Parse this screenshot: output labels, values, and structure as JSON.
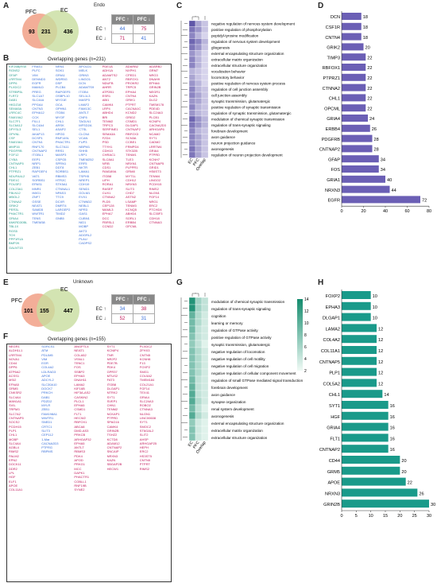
{
  "panel_letters": [
    "A",
    "B",
    "C",
    "D",
    "E",
    "F",
    "G",
    "H"
  ],
  "panel_a": {
    "figure_title": "Endo",
    "venn": {
      "set1": "PFC",
      "set2": "EC",
      "only1": "93",
      "both": "231",
      "only2": "436"
    },
    "table": {
      "col1": "PFC ↑",
      "col2": "PFC ↓",
      "row1": "EC ↑",
      "row2": "EC ↓",
      "c11": "44",
      "c12": "75",
      "c21": "71",
      "c22": "41"
    }
  },
  "panel_b": {
    "title": "Overlapping genes (n=231)",
    "columns": [
      {
        "cls": "g1",
        "genes": [
          "KIF26B|RSE",
          "RGNS2",
          "GFAP",
          "LRRTM4",
          "DPP6",
          "PLXDC2",
          "STRBP5L",
          "FLRT2",
          "DAB1",
          "HKDZ18",
          "SEMA5A",
          "LRRC4C",
          "FAM19A2",
          "SLC7F1",
          "SLC6A12",
          "DPYSL3",
          "OPVNL",
          "CSF",
          "FAM19A1",
          "MMP16",
          "PDGFRB",
          "FGF12",
          "CYBA",
          "CNTNAP5",
          "CHL1",
          "PTPRZ1",
          "NDUFA4L2",
          "PDE1C",
          "POU3F2",
          "COL23A1",
          "FBLN12",
          "MBOL2",
          "CTNNA2",
          "GRIK2",
          "PER3L",
          "PHACTR1",
          "GRIA4",
          "ANKRD30BL",
          "TBL1X",
          "RGS5",
          "TOX",
          "PPP1R1A",
          "BMP2K",
          "GALNT15"
        ]
      },
      {
        "cls": "g2",
        "genes": [
          "FRAS1",
          "PLFC",
          "VIM",
          "DENND3",
          "EGFR",
          "MAMLD",
          "PREG",
          "SLC1A7",
          "SLC44A",
          "PPGA4",
          "CNTN3",
          "EPHA12",
          "CCK",
          "FILL1",
          "SLC4A4",
          "SEL1",
          "AKAP13",
          "DCSP1",
          "CNTN1",
          "RNF170",
          "CNTNAP2",
          "ITGBL1",
          "EEP1",
          "NRP1",
          "ZEB1",
          "RAPGEF4",
          "VAT1",
          "SORBS1",
          "EPAS1",
          "MNR1",
          "IMIG1",
          "ZNF7",
          "GSSE",
          "NEAT1",
          "SAMD5",
          "WWTR1",
          "TENS",
          "TMEM38"
        ]
      },
      {
        "cls": "g2",
        "genes": [
          "NRN1",
          "SGK1",
          "GRIA1",
          "WDR5G",
          "DSP",
          "PLCB4",
          "RAPGEF5",
          "OSBPL10",
          "MYO1E",
          "OCA",
          "OPHN1",
          "ITGB4",
          "MYOF",
          "CHL1",
          "ARSK",
          "ASAP2",
          "HPGD",
          "RNF149L",
          "PHACTR1",
          "SLC7A11",
          "RRS1",
          "MASP3",
          "CSPG5",
          "SPRN1",
          "DDT8",
          "SORBS1",
          "RBMS3",
          "HTR2C",
          "STK5A1",
          "CTNNAL1",
          "NPAS3",
          "TTC9",
          "DCXR",
          "DMRT4",
          "LARGEP2",
          "TIMD2",
          "GNB5"
        ]
      },
      {
        "cls": "g2",
        "genes": [
          "APOLD1",
          "MELK",
          "GRIN3",
          "LINGO1",
          "DCN",
          "ADAMTS9",
          "ITGB4",
          "SEL1L3",
          "MASP3",
          "LMAF2",
          "FAM13C",
          "ANTLT",
          "CNF6",
          "TAGLN1",
          "MFSD2A",
          "CTSL",
          "CLCN4",
          "VCAN",
          "FUP3",
          "NBPM1",
          "SHH5",
          "LRP1",
          "TMEM252",
          "ERF5",
          "NKTR",
          "LAMA1",
          "TSPH5",
          "NREP1",
          "CDH19",
          "SEND1",
          "GOLM1",
          "EVX1",
          "CTNND2",
          "NEBL1",
          "NPR3",
          "GAS1",
          "CUBN1",
          "NID1",
          "MOBP",
          "AKT3",
          "ADGRL2",
          "PLAU",
          "CADPS2"
        ]
      },
      {
        "cls": "g3",
        "genes": [
          "PDE1A",
          "ADH1A",
          "ADAMTS2",
          "ANT2",
          "NDUFB",
          "AHRR",
          "ATP2B1",
          "ESR1",
          "ABI1",
          "CAMK4",
          "LRP4",
          "ABHD4",
          "BRI",
          "TENM2",
          "TRPC3",
          "SERPINE1",
          "SEMA3A",
          "FZD4",
          "PSD",
          "TTYH1",
          "CDH10",
          "CHRAC1",
          "SLC8A1",
          "NFIB",
          "CDS1",
          "FAM189A",
          "ITGB8",
          "LIPH",
          "RORA1",
          "RASEF",
          "CUX1",
          "CTNNA2",
          "PLD5",
          "CEP128",
          "MAML3",
          "EPHA7",
          "DCC",
          "FBRSL1",
          "CCND2"
        ]
      },
      {
        "cls": "g3",
        "genes": [
          "ADARB2",
          "NXPH1",
          "CPED1",
          "RBFOX1",
          "PROKR2",
          "TRPC5",
          "EPHA4",
          "CNTN4",
          "GRIK1",
          "PTPRT",
          "CACNA1C",
          "KCND2",
          "GRID2",
          "CSMD1",
          "DLGAP1",
          "CNTNAP2",
          "RBFOX3",
          "SCN3A",
          "CCBE1",
          "FRMPD4",
          "STK32B",
          "TENM1",
          "TLE3",
          "NRXN1",
          "PLPPR1",
          "GRM8",
          "MYT1L",
          "CDH12",
          "NRXN3",
          "SLIT3",
          "CHD7",
          "ASTN2",
          "LSAMP",
          "TENM3",
          "KCNQ5",
          "ABHD4",
          "SORL1",
          "ERBB4",
          "OPCML"
        ]
      },
      {
        "cls": "g3",
        "genes": [
          "ADARB2",
          "GRM7",
          "NRG3",
          "DNAH9",
          "EPHA6",
          "GRIN2B",
          "NEGR1",
          "KAZN",
          "DLG2",
          "TMEM178",
          "PDE4D",
          "SLC24A3",
          "PLCB1",
          "KCNIP4",
          "CACNA2D3",
          "ARHGAP6",
          "NCAM2",
          "SYT1",
          "CADM2",
          "LRRTM4",
          "GRIA4",
          "PTPRD",
          "KCNH7",
          "CNTNAP5",
          "GRID1",
          "HS6ST3",
          "TENM4",
          "LINGO2",
          "PCDH15",
          "RIMS2",
          "NLGN1",
          "FGF14",
          "NRG1",
          "ERC2",
          "PTCHD4",
          "SLC35F3",
          "CDH18",
          "CTNNA3"
        ]
      }
    ]
  },
  "panel_c": {
    "columns": [
      "EC",
      "PFC",
      "Overlap"
    ],
    "rows": [
      "negative regulation of nervous system development",
      "positive regulation of phosphorylation",
      "peptidyl-tyrosine modification",
      "regulation of nervous system development",
      "gliogenesis",
      "external encapsulating structure organization",
      "extracellular matrix organization",
      "extracellular structure organization",
      "vocalization behavior",
      "locomotory behavior",
      "positive regulation of nervous system process",
      "regulation of cell junction assembly",
      "cell junction assembly",
      "synaptic transmission, glutamatergic",
      "positive regulation of synaptic transmission",
      "regulation of synaptic transmission, glutamatergic",
      "modulation of chemical synaptic transmission",
      "regulation of trans-synaptic signaling",
      "forebrain development",
      "axon guidance",
      "neuron projection guidance",
      "axonogenesis",
      "regulation of neuron projection development"
    ],
    "values": [
      [
        0.9,
        0.4,
        0.2
      ],
      [
        0.7,
        0.5,
        0.2
      ],
      [
        0.6,
        0.3,
        0.1
      ],
      [
        0.8,
        0.6,
        0.3
      ],
      [
        0.7,
        0.5,
        0.2
      ],
      [
        0.5,
        0.3,
        0.1
      ],
      [
        0.6,
        0.3,
        0.1
      ],
      [
        0.6,
        0.3,
        0.1
      ],
      [
        0.3,
        0.2,
        0.1
      ],
      [
        0.4,
        0.2,
        0.1
      ],
      [
        0.5,
        0.3,
        0.1
      ],
      [
        0.6,
        0.3,
        0.2
      ],
      [
        0.6,
        0.4,
        0.2
      ],
      [
        0.5,
        0.4,
        0.2
      ],
      [
        0.6,
        0.3,
        0.2
      ],
      [
        0.5,
        0.3,
        0.2
      ],
      [
        0.8,
        0.5,
        0.3
      ],
      [
        0.7,
        0.5,
        0.3
      ],
      [
        0.6,
        0.3,
        0.2
      ],
      [
        0.6,
        0.4,
        0.2
      ],
      [
        0.6,
        0.4,
        0.2
      ],
      [
        0.7,
        0.4,
        0.2
      ],
      [
        0.7,
        0.4,
        0.2
      ]
    ]
  },
  "panel_d": {
    "genes": [
      "DCN",
      "CSF1R",
      "CNTN4",
      "GRIK2",
      "TIMP3",
      "RBFOX1",
      "PTPRZ1",
      "CTNNA2",
      "CHL1",
      "OPCML",
      "GRIA4",
      "ERBB4",
      "PDGFRB",
      "CNTNAP2",
      "GFAP",
      "FOS",
      "GRIA1",
      "NRXN3",
      "EGFR"
    ],
    "values": [
      18,
      18,
      18,
      20,
      22,
      22,
      22,
      22,
      22,
      22,
      24,
      26,
      28,
      28,
      34,
      34,
      40,
      44,
      72
    ],
    "xmax": 80,
    "ticks": [
      "0",
      "20",
      "40",
      "60",
      "80"
    ],
    "color": "#6b5fb5"
  },
  "panel_e": {
    "figure_title": "Unknown",
    "venn": {
      "set1": "PFC",
      "set2": "EC",
      "only1": "101",
      "both": "155",
      "only2": "447"
    },
    "table": {
      "col1": "PFC ↑",
      "col2": "PFC ↓",
      "row1": "EC ↑",
      "row2": "EC ↓",
      "c11": "34",
      "c12": "38",
      "c21": "52",
      "c22": "31"
    }
  },
  "panel_f": {
    "title": "Overlapping genes (n=155)",
    "columns": [
      {
        "cls": "g3",
        "genes": [
          "NEGR1",
          "ALDH1L1",
          "LRRTM4",
          "NOVA1",
          "CD44",
          "DPP6",
          "ATP6A2",
          "ACSS1",
          "MSI2",
          "EFNA5",
          "GRM5",
          "CNKSR2",
          "SLC4A4",
          "MAN1A1",
          "SVIL",
          "TRPM3",
          "SLC7A2",
          "CNTNAP5",
          "SOCS2",
          "PCDH15",
          "PLP1",
          "CHL1",
          "MOBP",
          "SLC4A4",
          "AGBL4",
          "RIMS2",
          "PALM2",
          "EPN2",
          "DOCK11",
          "DDR2",
          "LPL",
          "HGF",
          "ELF1",
          "APOE",
          "COL11A1"
        ]
      },
      {
        "cls": "g2",
        "genes": [
          "SORCS1",
          "ATM",
          "PDLIM5",
          "VIM",
          "EGR",
          "COL4A2",
          "LDLRAD3",
          "APOE",
          "ADCYL2",
          "SLC30A10",
          "DOCK7",
          "PRKCH",
          "DAB1",
          "PDZD2",
          "MYLR",
          "ZEB1",
          "FAM198A1",
          "WWTR1",
          "SNED1",
          "CRTC1",
          "SLIT3",
          "CEP112",
          "1-Mar",
          "CACNA2D3",
          "PTPRG",
          "RBPMS"
        ]
      },
      {
        "cls": "g3",
        "genes": [
          "ANGPTL4",
          "NEAT1",
          "COLA52",
          "VSNL1",
          "TENC1",
          "FOS",
          "SSBP2",
          "EPHA3",
          "DNAH11",
          "LAMA2",
          "KIF16B",
          "HIF3A-AS2",
          "CASKIN2",
          "PLCL1",
          "EPHA5",
          "CSMD1",
          "FLT1",
          "HECW2",
          "RBFOX1",
          "ABCA8",
          "DMD-AS3",
          "PRKCB",
          "ARHGAP32",
          "EPHA5",
          "ANTLT",
          "RBMS3",
          "PDK4",
          "APOD",
          "PRKG1",
          "MCC",
          "DAPK1",
          "PHACTR1",
          "COBLL1",
          "RNF19B",
          "SYNE2"
        ]
      },
      {
        "cls": "g3",
        "genes": [
          "SYT1",
          "KCNIP4",
          "TNR",
          "NR2F2",
          "PDE7B",
          "PDK4",
          "GPR37",
          "MTUS2",
          "FAT3",
          "ITGB8",
          "DLGAP1",
          "NTRK2",
          "SYT1",
          "SVEP1",
          "CHN1",
          "TENM2",
          "NCKAP1",
          "PTPRD",
          "SPAG16",
          "CAMK4",
          "GRIN2B",
          "TSHZ2",
          "KCTD8",
          "ADAM12",
          "CNTNAP2",
          "SNCAIP",
          "NRXN3",
          "KAZN",
          "SBGAP2B",
          "HECW1"
        ]
      },
      {
        "cls": "g3",
        "genes": [
          "PLXDC2",
          "ZFHX3",
          "CNTN5",
          "KCNH8",
          "F13",
          "FOXP2",
          "SMG1",
          "COL5A2",
          "TMEM184",
          "COL21A1",
          "FGF14",
          "TEX41",
          "GRIA4",
          "SLC24A3",
          "ROBO2",
          "CTNNA3",
          "NLGN1",
          "LINC00608",
          "SYT1",
          "SMOC2",
          "ST6GAL2",
          "SLIT2",
          "AHSP",
          "ARHGAP25",
          "HEPH",
          "ERC2",
          "HS3ST5",
          "CNTN5",
          "PTPRT",
          "RIMS2"
        ]
      }
    ]
  },
  "panel_g": {
    "columns": [
      "EC",
      "PFC",
      "Overlap"
    ],
    "rows": [
      "modulation of chemical synaptic transmission",
      "regulation of trans-synaptic signaling",
      "cognition",
      "learning or memory",
      "regulation of GTPase activity",
      "positive regulation of GTPase activity",
      "synaptic transmission, glutamatergic",
      "negative regulation of locomotion",
      "negative regulation of cell motility",
      "negative regulation of cell migration",
      "negative regulation of cellular component movement",
      "regulation of small GTPase mediated signal transduction",
      "forebrain development",
      "axon guidance",
      "synapse organization",
      "renal system development",
      "axonogenesis",
      "external encapsulating structure organization",
      "extracellular matrix organization",
      "extracellular structure organization"
    ],
    "values": [
      [
        13,
        5,
        3
      ],
      [
        13,
        5,
        3
      ],
      [
        9,
        4,
        2
      ],
      [
        8,
        4,
        2
      ],
      [
        8,
        3,
        2
      ],
      [
        7,
        3,
        2
      ],
      [
        6,
        3,
        1
      ],
      [
        7,
        4,
        2
      ],
      [
        7,
        4,
        2
      ],
      [
        7,
        4,
        2
      ],
      [
        7,
        4,
        2
      ],
      [
        8,
        3,
        2
      ],
      [
        9,
        3,
        2
      ],
      [
        10,
        3,
        2
      ],
      [
        10,
        4,
        2
      ],
      [
        8,
        3,
        1
      ],
      [
        10,
        4,
        2
      ],
      [
        6,
        2,
        1
      ],
      [
        7,
        2,
        1
      ],
      [
        7,
        2,
        1
      ]
    ],
    "legend_ticks": [
      "14",
      "12",
      "10",
      "8",
      "6",
      "4",
      "2"
    ]
  },
  "panel_h": {
    "genes": [
      "FOXP2",
      "EPHA3",
      "DLGAP1",
      "LAMA2",
      "COL4A2",
      "COL11A1",
      "CNTNAP5",
      "PLP1",
      "COL5A2",
      "CHL1",
      "SYT1",
      "HGF",
      "GRIA4",
      "FLT1",
      "CNTNAP2",
      "CD44",
      "GRM5",
      "APOE",
      "NRXN3",
      "GRIN2B"
    ],
    "values": [
      10,
      10,
      10,
      12,
      12,
      12,
      12,
      12,
      12,
      14,
      16,
      16,
      16,
      16,
      16,
      20,
      20,
      22,
      26,
      30
    ],
    "xmax": 30,
    "ticks": [
      "0",
      "5",
      "10",
      "15",
      "20",
      "25",
      "30"
    ],
    "color": "#1a9a8a"
  }
}
